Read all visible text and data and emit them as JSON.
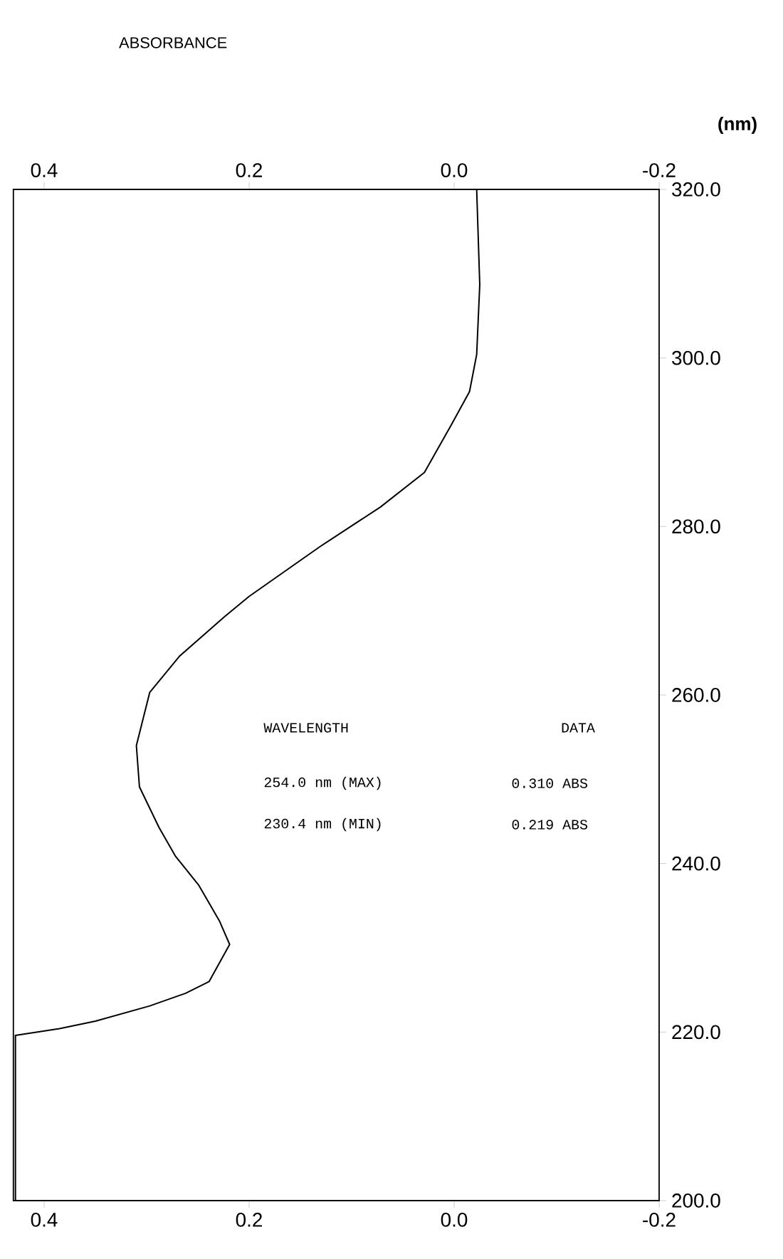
{
  "chart_data": {
    "type": "line",
    "title": "ABSORBANCE",
    "ylabel": "(nm)",
    "series": [
      {
        "color": "#000000",
        "x": [
          -0.022,
          -0.025,
          -0.022,
          -0.015,
          0.003,
          0.029,
          0.072,
          0.131,
          0.2,
          0.224,
          0.268,
          0.297,
          0.31,
          0.307,
          0.288,
          0.272,
          0.249,
          0.229,
          0.219,
          0.239,
          0.262,
          0.297,
          0.35,
          0.385,
          0.428,
          0.428
        ],
        "values": [
          320,
          308.7,
          300.4,
          296,
          292,
          286.4,
          282.3,
          277.6,
          271.7,
          269.3,
          264.6,
          260.3,
          254,
          249.1,
          244.3,
          240.9,
          237.4,
          233.2,
          230.4,
          226,
          224.6,
          223.1,
          221.3,
          220.4,
          219.6,
          200
        ]
      }
    ],
    "xlim": [
      0.43,
      -0.2
    ],
    "xticks": [
      0.4,
      0.2,
      {
        "value": 0,
        "label": "0.0"
      },
      -0.2
    ],
    "x2lim": [
      0.43,
      -0.2
    ],
    "x2ticks": [
      0.4,
      0.2,
      {
        "value": 0,
        "label": "0.0"
      },
      -0.2
    ],
    "ylim": [
      200,
      320
    ],
    "yticks": [
      {
        "value": 200,
        "label": "200.0"
      },
      {
        "value": 220,
        "label": "220.0"
      },
      {
        "value": 240,
        "label": "240.0"
      },
      {
        "value": 260,
        "label": "260.0"
      },
      {
        "value": 280,
        "label": "280.0"
      },
      {
        "value": 300,
        "label": "300.0"
      },
      {
        "value": 320,
        "label": "320.0"
      }
    ],
    "annotations": [
      "WAVELENGTH",
      "DATA",
      "254.0 nm (MAX)",
      "0.310 ABS",
      "230.4 nm (MIN)",
      "0.219 ABS"
    ],
    "grid": false,
    "marker": "none",
    "line_style": "solid"
  }
}
